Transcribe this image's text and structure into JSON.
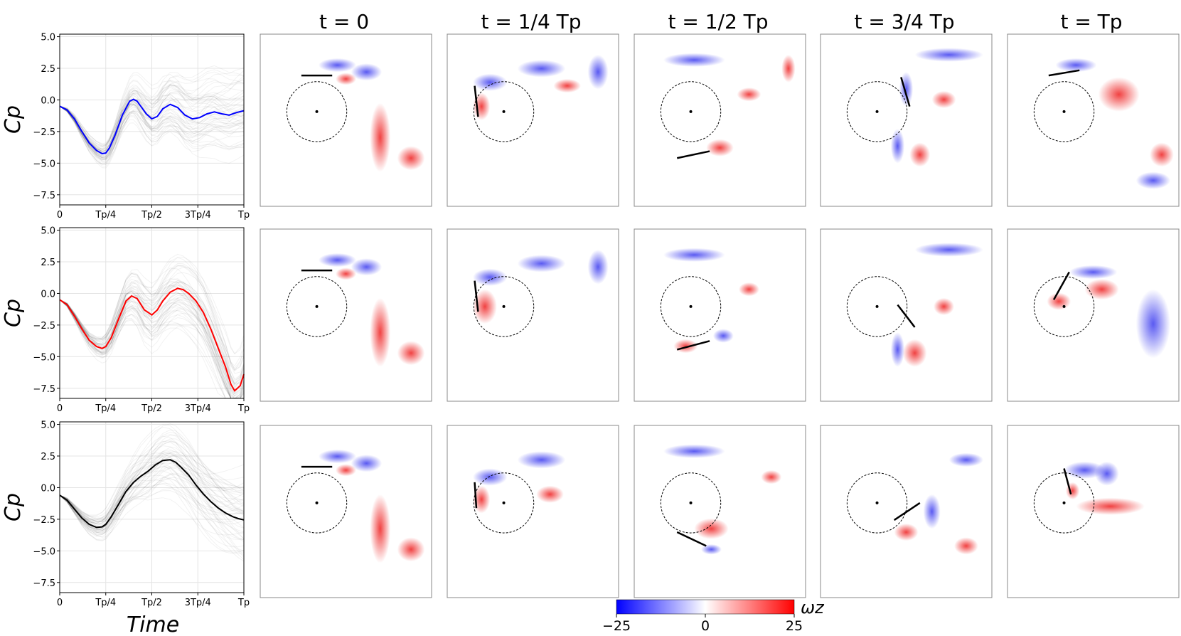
{
  "chart_data": {
    "type": "line",
    "x_ticks": [
      "0",
      "Tp/4",
      "Tp/2",
      "3Tp/4",
      "Tp"
    ],
    "x_label": "Time",
    "y_label": "Cp",
    "y_ticks": [
      "5.0",
      "2.5",
      "0.0",
      "−2.5",
      "−5.0",
      "−7.5"
    ],
    "ylim": [
      -8.3,
      5.2
    ],
    "column_titles": [
      "t = 0",
      "t = 1/4 Tp",
      "t = 1/2 Tp",
      "t = 3/4 Tp",
      "t = Tp"
    ],
    "colorbar": {
      "min": "−25",
      "mid": "0",
      "max": "25",
      "label": "ωz",
      "colors": [
        "#0000ff",
        "#ffffff",
        "#ff0000"
      ]
    },
    "rows": [
      {
        "highlight_color": "#0000ff",
        "series": {
          "x": [
            0,
            0.04,
            0.08,
            0.12,
            0.16,
            0.2,
            0.23,
            0.25,
            0.27,
            0.3,
            0.34,
            0.38,
            0.4,
            0.42,
            0.44,
            0.47,
            0.5,
            0.53,
            0.56,
            0.6,
            0.64,
            0.68,
            0.72,
            0.76,
            0.8,
            0.84,
            0.88,
            0.92,
            0.96,
            1.0
          ],
          "y": [
            -0.5,
            -0.8,
            -1.5,
            -2.5,
            -3.4,
            -4.0,
            -4.25,
            -4.2,
            -3.8,
            -2.8,
            -1.2,
            -0.1,
            0.05,
            -0.1,
            -0.5,
            -1.1,
            -1.5,
            -1.3,
            -0.7,
            -0.35,
            -0.6,
            -1.2,
            -1.5,
            -1.4,
            -1.1,
            -0.95,
            -1.1,
            -1.2,
            -1.0,
            -0.85
          ]
        },
        "snapshots": [
          {
            "plate": [
              0.24,
              0.24,
              0.42,
              0.24
            ],
            "vortices": [
              {
                "x": 0.45,
                "y": 0.18,
                "rx": 0.11,
                "ry": 0.04,
                "sign": -1
              },
              {
                "x": 0.62,
                "y": 0.22,
                "rx": 0.09,
                "ry": 0.05,
                "sign": -1
              },
              {
                "x": 0.5,
                "y": 0.26,
                "rx": 0.06,
                "ry": 0.035,
                "sign": 1
              },
              {
                "x": 0.88,
                "y": 0.72,
                "rx": 0.08,
                "ry": 0.07,
                "sign": 1
              },
              {
                "x": 0.7,
                "y": 0.6,
                "rx": 0.06,
                "ry": 0.2,
                "sign": 1
              }
            ]
          },
          {
            "plate": [
              0.16,
              0.3,
              0.18,
              0.48
            ],
            "vortices": [
              {
                "x": 0.25,
                "y": 0.28,
                "rx": 0.1,
                "ry": 0.05,
                "sign": -1
              },
              {
                "x": 0.55,
                "y": 0.2,
                "rx": 0.14,
                "ry": 0.05,
                "sign": -1
              },
              {
                "x": 0.2,
                "y": 0.42,
                "rx": 0.05,
                "ry": 0.08,
                "sign": 1
              },
              {
                "x": 0.88,
                "y": 0.22,
                "rx": 0.06,
                "ry": 0.1,
                "sign": -1
              },
              {
                "x": 0.7,
                "y": 0.3,
                "rx": 0.08,
                "ry": 0.04,
                "sign": 1
              }
            ]
          },
          {
            "plate": [
              0.25,
              0.72,
              0.44,
              0.68
            ],
            "vortices": [
              {
                "x": 0.5,
                "y": 0.66,
                "rx": 0.08,
                "ry": 0.05,
                "sign": 1
              },
              {
                "x": 0.35,
                "y": 0.15,
                "rx": 0.18,
                "ry": 0.04,
                "sign": -1
              },
              {
                "x": 0.67,
                "y": 0.35,
                "rx": 0.07,
                "ry": 0.04,
                "sign": 1
              },
              {
                "x": 0.9,
                "y": 0.2,
                "rx": 0.04,
                "ry": 0.08,
                "sign": 1
              }
            ]
          },
          {
            "plate": [
              0.47,
              0.25,
              0.52,
              0.42
            ],
            "vortices": [
              {
                "x": 0.5,
                "y": 0.32,
                "rx": 0.04,
                "ry": 0.1,
                "sign": -1
              },
              {
                "x": 0.58,
                "y": 0.7,
                "rx": 0.06,
                "ry": 0.07,
                "sign": 1
              },
              {
                "x": 0.72,
                "y": 0.38,
                "rx": 0.07,
                "ry": 0.05,
                "sign": 1
              },
              {
                "x": 0.45,
                "y": 0.65,
                "rx": 0.04,
                "ry": 0.1,
                "sign": -1
              },
              {
                "x": 0.75,
                "y": 0.12,
                "rx": 0.2,
                "ry": 0.04,
                "sign": -1
              }
            ]
          },
          {
            "plate": [
              0.24,
              0.24,
              0.42,
              0.21
            ],
            "vortices": [
              {
                "x": 0.4,
                "y": 0.18,
                "rx": 0.12,
                "ry": 0.04,
                "sign": -1
              },
              {
                "x": 0.65,
                "y": 0.35,
                "rx": 0.12,
                "ry": 0.1,
                "sign": 1
              },
              {
                "x": 0.9,
                "y": 0.7,
                "rx": 0.07,
                "ry": 0.07,
                "sign": 1
              },
              {
                "x": 0.85,
                "y": 0.85,
                "rx": 0.1,
                "ry": 0.05,
                "sign": -1
              }
            ]
          }
        ]
      },
      {
        "highlight_color": "#ff0000",
        "series": {
          "x": [
            0,
            0.04,
            0.08,
            0.12,
            0.16,
            0.2,
            0.23,
            0.25,
            0.28,
            0.32,
            0.36,
            0.39,
            0.42,
            0.46,
            0.5,
            0.53,
            0.56,
            0.6,
            0.64,
            0.67,
            0.7,
            0.74,
            0.78,
            0.82,
            0.86,
            0.9,
            0.93,
            0.95,
            0.98,
            1.0
          ],
          "y": [
            -0.5,
            -0.9,
            -1.8,
            -2.8,
            -3.7,
            -4.2,
            -4.35,
            -4.2,
            -3.5,
            -2.0,
            -0.6,
            -0.2,
            -0.4,
            -1.3,
            -1.7,
            -1.3,
            -0.6,
            0.1,
            0.4,
            0.3,
            0.0,
            -0.6,
            -1.5,
            -2.8,
            -4.3,
            -5.8,
            -7.2,
            -7.7,
            -7.3,
            -6.4
          ]
        },
        "snapshots": [
          {
            "plate": [
              0.24,
              0.24,
              0.42,
              0.24
            ],
            "vortices": [
              {
                "x": 0.45,
                "y": 0.18,
                "rx": 0.11,
                "ry": 0.04,
                "sign": -1
              },
              {
                "x": 0.62,
                "y": 0.22,
                "rx": 0.09,
                "ry": 0.05,
                "sign": -1
              },
              {
                "x": 0.5,
                "y": 0.26,
                "rx": 0.06,
                "ry": 0.035,
                "sign": 1
              },
              {
                "x": 0.88,
                "y": 0.72,
                "rx": 0.08,
                "ry": 0.07,
                "sign": 1
              },
              {
                "x": 0.7,
                "y": 0.6,
                "rx": 0.06,
                "ry": 0.2,
                "sign": 1
              }
            ]
          },
          {
            "plate": [
              0.16,
              0.3,
              0.18,
              0.48
            ],
            "vortices": [
              {
                "x": 0.25,
                "y": 0.28,
                "rx": 0.1,
                "ry": 0.05,
                "sign": -1
              },
              {
                "x": 0.55,
                "y": 0.2,
                "rx": 0.14,
                "ry": 0.05,
                "sign": -1
              },
              {
                "x": 0.22,
                "y": 0.45,
                "rx": 0.07,
                "ry": 0.1,
                "sign": 1
              },
              {
                "x": 0.88,
                "y": 0.22,
                "rx": 0.06,
                "ry": 0.1,
                "sign": -1
              }
            ]
          },
          {
            "plate": [
              0.25,
              0.7,
              0.44,
              0.65
            ],
            "vortices": [
              {
                "x": 0.3,
                "y": 0.68,
                "rx": 0.07,
                "ry": 0.04,
                "sign": 1
              },
              {
                "x": 0.35,
                "y": 0.15,
                "rx": 0.18,
                "ry": 0.04,
                "sign": -1
              },
              {
                "x": 0.52,
                "y": 0.62,
                "rx": 0.06,
                "ry": 0.04,
                "sign": -1
              },
              {
                "x": 0.67,
                "y": 0.35,
                "rx": 0.06,
                "ry": 0.04,
                "sign": 1
              }
            ]
          },
          {
            "plate": [
              0.45,
              0.44,
              0.55,
              0.57
            ],
            "vortices": [
              {
                "x": 0.55,
                "y": 0.72,
                "rx": 0.07,
                "ry": 0.08,
                "sign": 1
              },
              {
                "x": 0.72,
                "y": 0.45,
                "rx": 0.06,
                "ry": 0.05,
                "sign": 1
              },
              {
                "x": 0.45,
                "y": 0.7,
                "rx": 0.04,
                "ry": 0.1,
                "sign": -1
              },
              {
                "x": 0.75,
                "y": 0.12,
                "rx": 0.2,
                "ry": 0.04,
                "sign": -1
              }
            ]
          },
          {
            "plate": [
              0.27,
              0.41,
              0.36,
              0.25
            ],
            "vortices": [
              {
                "x": 0.5,
                "y": 0.25,
                "rx": 0.14,
                "ry": 0.04,
                "sign": -1
              },
              {
                "x": 0.3,
                "y": 0.42,
                "rx": 0.07,
                "ry": 0.05,
                "sign": 1
              },
              {
                "x": 0.55,
                "y": 0.35,
                "rx": 0.1,
                "ry": 0.06,
                "sign": 1
              },
              {
                "x": 0.85,
                "y": 0.55,
                "rx": 0.1,
                "ry": 0.2,
                "sign": -1
              }
            ]
          }
        ]
      },
      {
        "highlight_color": "#000000",
        "series": {
          "x": [
            0,
            0.04,
            0.08,
            0.12,
            0.16,
            0.2,
            0.23,
            0.25,
            0.28,
            0.32,
            0.36,
            0.4,
            0.44,
            0.48,
            0.52,
            0.56,
            0.6,
            0.63,
            0.66,
            0.7,
            0.74,
            0.78,
            0.82,
            0.86,
            0.9,
            0.94,
            0.97,
            1.0
          ],
          "y": [
            -0.6,
            -1.0,
            -1.7,
            -2.4,
            -2.9,
            -3.15,
            -3.1,
            -2.9,
            -2.3,
            -1.3,
            -0.3,
            0.4,
            0.9,
            1.3,
            1.8,
            2.15,
            2.2,
            2.0,
            1.6,
            1.0,
            0.2,
            -0.5,
            -1.1,
            -1.6,
            -2.0,
            -2.3,
            -2.45,
            -2.55
          ]
        },
        "snapshots": [
          {
            "plate": [
              0.24,
              0.24,
              0.42,
              0.24
            ],
            "vortices": [
              {
                "x": 0.45,
                "y": 0.18,
                "rx": 0.11,
                "ry": 0.04,
                "sign": -1
              },
              {
                "x": 0.62,
                "y": 0.22,
                "rx": 0.09,
                "ry": 0.05,
                "sign": -1
              },
              {
                "x": 0.5,
                "y": 0.26,
                "rx": 0.06,
                "ry": 0.035,
                "sign": 1
              },
              {
                "x": 0.88,
                "y": 0.72,
                "rx": 0.08,
                "ry": 0.07,
                "sign": 1
              },
              {
                "x": 0.7,
                "y": 0.6,
                "rx": 0.06,
                "ry": 0.2,
                "sign": 1
              }
            ]
          },
          {
            "plate": [
              0.16,
              0.33,
              0.17,
              0.48
            ],
            "vortices": [
              {
                "x": 0.25,
                "y": 0.3,
                "rx": 0.1,
                "ry": 0.05,
                "sign": -1
              },
              {
                "x": 0.55,
                "y": 0.2,
                "rx": 0.14,
                "ry": 0.05,
                "sign": -1
              },
              {
                "x": 0.2,
                "y": 0.43,
                "rx": 0.05,
                "ry": 0.08,
                "sign": 1
              },
              {
                "x": 0.6,
                "y": 0.4,
                "rx": 0.08,
                "ry": 0.05,
                "sign": 1
              }
            ]
          },
          {
            "plate": [
              0.25,
              0.62,
              0.42,
              0.7
            ],
            "vortices": [
              {
                "x": 0.45,
                "y": 0.6,
                "rx": 0.1,
                "ry": 0.06,
                "sign": 1
              },
              {
                "x": 0.35,
                "y": 0.15,
                "rx": 0.18,
                "ry": 0.04,
                "sign": -1
              },
              {
                "x": 0.45,
                "y": 0.72,
                "rx": 0.06,
                "ry": 0.03,
                "sign": -1
              },
              {
                "x": 0.8,
                "y": 0.3,
                "rx": 0.06,
                "ry": 0.04,
                "sign": 1
              }
            ]
          },
          {
            "plate": [
              0.43,
              0.55,
              0.58,
              0.45
            ],
            "vortices": [
              {
                "x": 0.5,
                "y": 0.62,
                "rx": 0.07,
                "ry": 0.05,
                "sign": 1
              },
              {
                "x": 0.65,
                "y": 0.5,
                "rx": 0.05,
                "ry": 0.1,
                "sign": -1
              },
              {
                "x": 0.85,
                "y": 0.7,
                "rx": 0.07,
                "ry": 0.05,
                "sign": 1
              },
              {
                "x": 0.85,
                "y": 0.2,
                "rx": 0.1,
                "ry": 0.04,
                "sign": -1
              }
            ]
          },
          {
            "plate": [
              0.33,
              0.25,
              0.37,
              0.4
            ],
            "vortices": [
              {
                "x": 0.45,
                "y": 0.26,
                "rx": 0.12,
                "ry": 0.05,
                "sign": -1
              },
              {
                "x": 0.58,
                "y": 0.28,
                "rx": 0.07,
                "ry": 0.07,
                "sign": -1
              },
              {
                "x": 0.6,
                "y": 0.47,
                "rx": 0.2,
                "ry": 0.05,
                "sign": 1
              },
              {
                "x": 0.38,
                "y": 0.38,
                "rx": 0.04,
                "ry": 0.05,
                "sign": 1
              }
            ]
          }
        ]
      }
    ]
  }
}
